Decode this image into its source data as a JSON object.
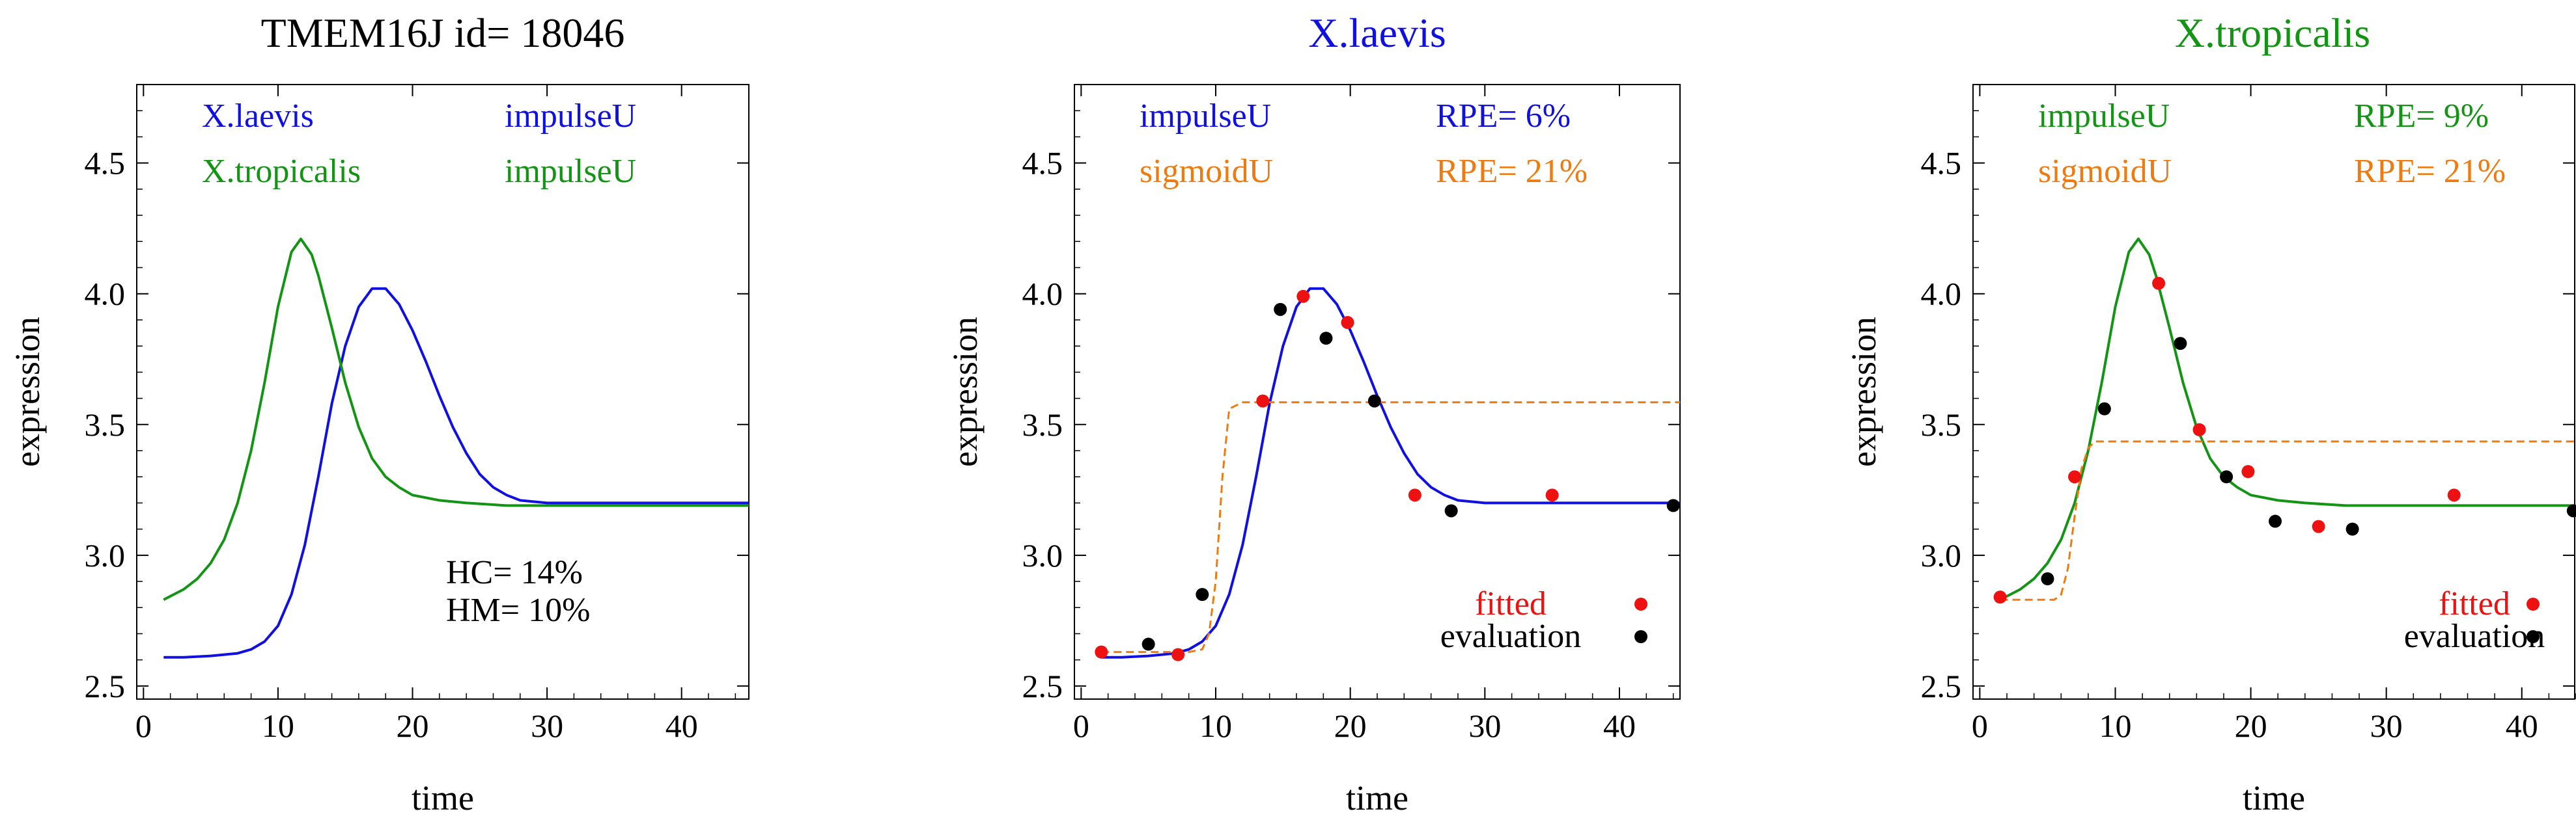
{
  "chart_data": [
    {
      "type": "line",
      "title": "TMEM16J     id= 18046",
      "title_color": "#000000",
      "xlabel": "time",
      "ylabel": "expression",
      "xlim": [
        -0.5,
        45
      ],
      "ylim": [
        2.45,
        4.8
      ],
      "xticks": [
        0,
        10,
        20,
        30,
        40
      ],
      "yticks": [
        2.5,
        3.0,
        3.5,
        4.0,
        4.5
      ],
      "ytick_labels": [
        "2.5",
        "3.0",
        "3.5",
        "4.0",
        "4.5"
      ],
      "legend_rows": [
        {
          "left": "X.laevis",
          "right": "impulseU",
          "color": "#1010e0"
        },
        {
          "left": "X.tropicalis",
          "right": "impulseU",
          "color": "#149414"
        }
      ],
      "annotations": [
        "HC= 14%",
        "HM= 10%"
      ],
      "series": [
        {
          "name": "X.laevis",
          "color": "#1010e0",
          "dashed": false,
          "x": [
            1.5,
            3,
            5,
            7,
            8,
            9,
            10,
            11,
            12,
            13,
            14,
            15,
            16,
            17,
            18,
            19,
            20,
            21,
            22,
            23,
            24,
            25,
            26,
            27,
            28,
            30,
            33,
            36,
            40,
            45
          ],
          "y": [
            2.61,
            2.61,
            2.615,
            2.625,
            2.64,
            2.67,
            2.73,
            2.85,
            3.04,
            3.3,
            3.58,
            3.8,
            3.95,
            4.02,
            4.02,
            3.96,
            3.86,
            3.74,
            3.61,
            3.49,
            3.39,
            3.31,
            3.26,
            3.23,
            3.21,
            3.2,
            3.2,
            3.2,
            3.2,
            3.2
          ]
        },
        {
          "name": "X.tropicalis",
          "color": "#149414",
          "dashed": false,
          "x": [
            1.5,
            3,
            4,
            5,
            6,
            7,
            8,
            9,
            10,
            11,
            11.7,
            12.5,
            13,
            14,
            15,
            16,
            17,
            18,
            19,
            20,
            22,
            24,
            27,
            30,
            35,
            40,
            45
          ],
          "y": [
            2.83,
            2.87,
            2.91,
            2.97,
            3.06,
            3.2,
            3.4,
            3.66,
            3.95,
            4.16,
            4.21,
            4.15,
            4.07,
            3.87,
            3.66,
            3.49,
            3.37,
            3.3,
            3.26,
            3.23,
            3.21,
            3.2,
            3.19,
            3.19,
            3.19,
            3.19,
            3.19
          ]
        }
      ],
      "points": []
    },
    {
      "type": "line",
      "title": "X.laevis",
      "title_color": "#1010e0",
      "xlabel": "time",
      "ylabel": "expression",
      "xlim": [
        -0.5,
        44.5
      ],
      "ylim": [
        2.45,
        4.8
      ],
      "xticks": [
        0,
        10,
        20,
        30,
        40
      ],
      "yticks": [
        2.5,
        3.0,
        3.5,
        4.0,
        4.5
      ],
      "ytick_labels": [
        "2.5",
        "3.0",
        "3.5",
        "4.0",
        "4.5"
      ],
      "legend_rows": [
        {
          "left": "impulseU",
          "right": "RPE= 6%",
          "color": "#1010e0"
        },
        {
          "left": "sigmoidU",
          "right": "RPE= 21%",
          "color": "#ee7b10"
        }
      ],
      "point_legend": [
        {
          "label": "fitted",
          "label_color": "#ee1111",
          "dot": "#ee1111"
        },
        {
          "label": "evaluation",
          "label_color": "#000000",
          "dot": "#000000"
        }
      ],
      "annotations": [],
      "series": [
        {
          "name": "impulseU",
          "color": "#1010e0",
          "dashed": false,
          "x": [
            1.5,
            3,
            5,
            7,
            8,
            9,
            10,
            11,
            12,
            13,
            14,
            15,
            16,
            17,
            18,
            19,
            20,
            21,
            22,
            23,
            24,
            25,
            26,
            27,
            28,
            30,
            33,
            36,
            40,
            44.5
          ],
          "y": [
            2.61,
            2.61,
            2.615,
            2.625,
            2.64,
            2.67,
            2.73,
            2.85,
            3.04,
            3.3,
            3.58,
            3.8,
            3.95,
            4.02,
            4.02,
            3.96,
            3.86,
            3.74,
            3.61,
            3.49,
            3.39,
            3.31,
            3.26,
            3.23,
            3.21,
            3.2,
            3.2,
            3.2,
            3.2,
            3.2
          ]
        },
        {
          "name": "sigmoidU",
          "color": "#ee7b10",
          "dashed": true,
          "x": [
            1.5,
            8,
            9,
            9.5,
            10,
            10.5,
            11,
            12,
            44.5
          ],
          "y": [
            2.63,
            2.63,
            2.64,
            2.7,
            2.9,
            3.3,
            3.56,
            3.585,
            3.585
          ]
        }
      ],
      "points": [
        {
          "x": 1.5,
          "y": 2.63,
          "kind": "fitted"
        },
        {
          "x": 5,
          "y": 2.66,
          "kind": "evaluation"
        },
        {
          "x": 7.2,
          "y": 2.62,
          "kind": "fitted"
        },
        {
          "x": 9,
          "y": 2.85,
          "kind": "evaluation"
        },
        {
          "x": 13.5,
          "y": 3.59,
          "kind": "fitted"
        },
        {
          "x": 14.8,
          "y": 3.94,
          "kind": "evaluation"
        },
        {
          "x": 16.5,
          "y": 3.99,
          "kind": "fitted"
        },
        {
          "x": 18.2,
          "y": 3.83,
          "kind": "evaluation"
        },
        {
          "x": 19.8,
          "y": 3.89,
          "kind": "fitted"
        },
        {
          "x": 21.8,
          "y": 3.59,
          "kind": "evaluation"
        },
        {
          "x": 24.8,
          "y": 3.23,
          "kind": "fitted"
        },
        {
          "x": 27.5,
          "y": 3.17,
          "kind": "evaluation"
        },
        {
          "x": 35,
          "y": 3.23,
          "kind": "fitted"
        },
        {
          "x": 44,
          "y": 3.19,
          "kind": "evaluation"
        }
      ]
    },
    {
      "type": "line",
      "title": "X.tropicalis",
      "title_color": "#149414",
      "xlabel": "time",
      "ylabel": "expression",
      "xlim": [
        -0.5,
        44
      ],
      "ylim": [
        2.45,
        4.8
      ],
      "xticks": [
        0,
        10,
        20,
        30,
        40
      ],
      "yticks": [
        2.5,
        3.0,
        3.5,
        4.0,
        4.5
      ],
      "ytick_labels": [
        "2.5",
        "3.0",
        "3.5",
        "4.0",
        "4.5"
      ],
      "legend_rows": [
        {
          "left": "impulseU",
          "right": "RPE= 9%",
          "color": "#149414"
        },
        {
          "left": "sigmoidU",
          "right": "RPE= 21%",
          "color": "#ee7b10"
        }
      ],
      "point_legend": [
        {
          "label": "fitted",
          "label_color": "#ee1111",
          "dot": "#ee1111"
        },
        {
          "label": "evaluation",
          "label_color": "#000000",
          "dot": "#000000"
        }
      ],
      "annotations": [],
      "series": [
        {
          "name": "impulseU",
          "color": "#149414",
          "dashed": false,
          "x": [
            1.5,
            3,
            4,
            5,
            6,
            7,
            8,
            9,
            10,
            11,
            11.7,
            12.5,
            13,
            14,
            15,
            16,
            17,
            18,
            19,
            20,
            22,
            24,
            27,
            30,
            35,
            40,
            44
          ],
          "y": [
            2.83,
            2.87,
            2.91,
            2.97,
            3.06,
            3.2,
            3.4,
            3.66,
            3.95,
            4.16,
            4.21,
            4.15,
            4.07,
            3.87,
            3.66,
            3.49,
            3.37,
            3.3,
            3.26,
            3.23,
            3.21,
            3.2,
            3.19,
            3.19,
            3.19,
            3.19,
            3.19
          ]
        },
        {
          "name": "sigmoidU",
          "color": "#ee7b10",
          "dashed": true,
          "x": [
            1.5,
            5.5,
            6,
            6.5,
            7,
            7.5,
            8,
            8.5,
            44
          ],
          "y": [
            2.83,
            2.83,
            2.85,
            2.95,
            3.15,
            3.33,
            3.41,
            3.435,
            3.435
          ]
        }
      ],
      "points": [
        {
          "x": 1.5,
          "y": 2.84,
          "kind": "fitted"
        },
        {
          "x": 5,
          "y": 2.91,
          "kind": "evaluation"
        },
        {
          "x": 7,
          "y": 3.3,
          "kind": "fitted"
        },
        {
          "x": 9.2,
          "y": 3.56,
          "kind": "evaluation"
        },
        {
          "x": 13.2,
          "y": 4.04,
          "kind": "fitted"
        },
        {
          "x": 14.8,
          "y": 3.81,
          "kind": "evaluation"
        },
        {
          "x": 16.2,
          "y": 3.48,
          "kind": "fitted"
        },
        {
          "x": 18.2,
          "y": 3.3,
          "kind": "evaluation"
        },
        {
          "x": 19.8,
          "y": 3.32,
          "kind": "fitted"
        },
        {
          "x": 21.8,
          "y": 3.13,
          "kind": "evaluation"
        },
        {
          "x": 25,
          "y": 3.11,
          "kind": "fitted"
        },
        {
          "x": 27.5,
          "y": 3.1,
          "kind": "evaluation"
        },
        {
          "x": 35,
          "y": 3.23,
          "kind": "fitted"
        },
        {
          "x": 43.8,
          "y": 3.17,
          "kind": "evaluation"
        }
      ]
    }
  ]
}
